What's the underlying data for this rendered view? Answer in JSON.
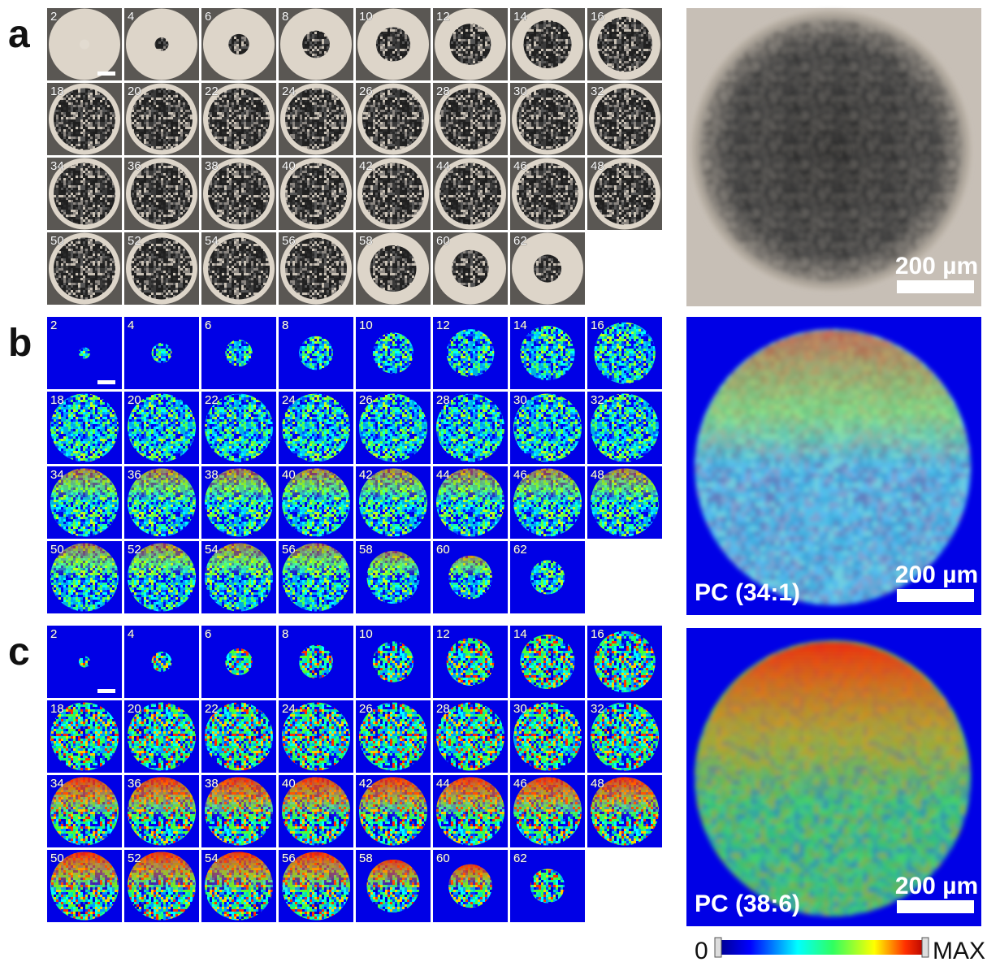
{
  "panels": [
    {
      "label": "a",
      "slices": [
        2,
        4,
        6,
        8,
        10,
        12,
        14,
        16,
        18,
        20,
        22,
        24,
        26,
        28,
        30,
        32,
        34,
        36,
        38,
        40,
        42,
        44,
        46,
        48,
        50,
        52,
        54,
        56,
        58,
        60,
        62
      ],
      "scale": "200 µm"
    },
    {
      "label": "b",
      "slices": [
        2,
        4,
        6,
        8,
        10,
        12,
        14,
        16,
        18,
        20,
        22,
        24,
        26,
        28,
        30,
        32,
        34,
        36,
        38,
        40,
        42,
        44,
        46,
        48,
        50,
        52,
        54,
        56,
        58,
        60,
        62
      ],
      "scale": "200 µm",
      "caption": "PC (34:1)"
    },
    {
      "label": "c",
      "slices": [
        2,
        4,
        6,
        8,
        10,
        12,
        14,
        16,
        18,
        20,
        22,
        24,
        26,
        28,
        30,
        32,
        34,
        36,
        38,
        40,
        42,
        44,
        46,
        48,
        50,
        52,
        54,
        56,
        58,
        60,
        62
      ],
      "scale": "200 µm",
      "caption": "PC (38:6)"
    }
  ],
  "colorbar": {
    "min": "0",
    "max": "MAX"
  }
}
